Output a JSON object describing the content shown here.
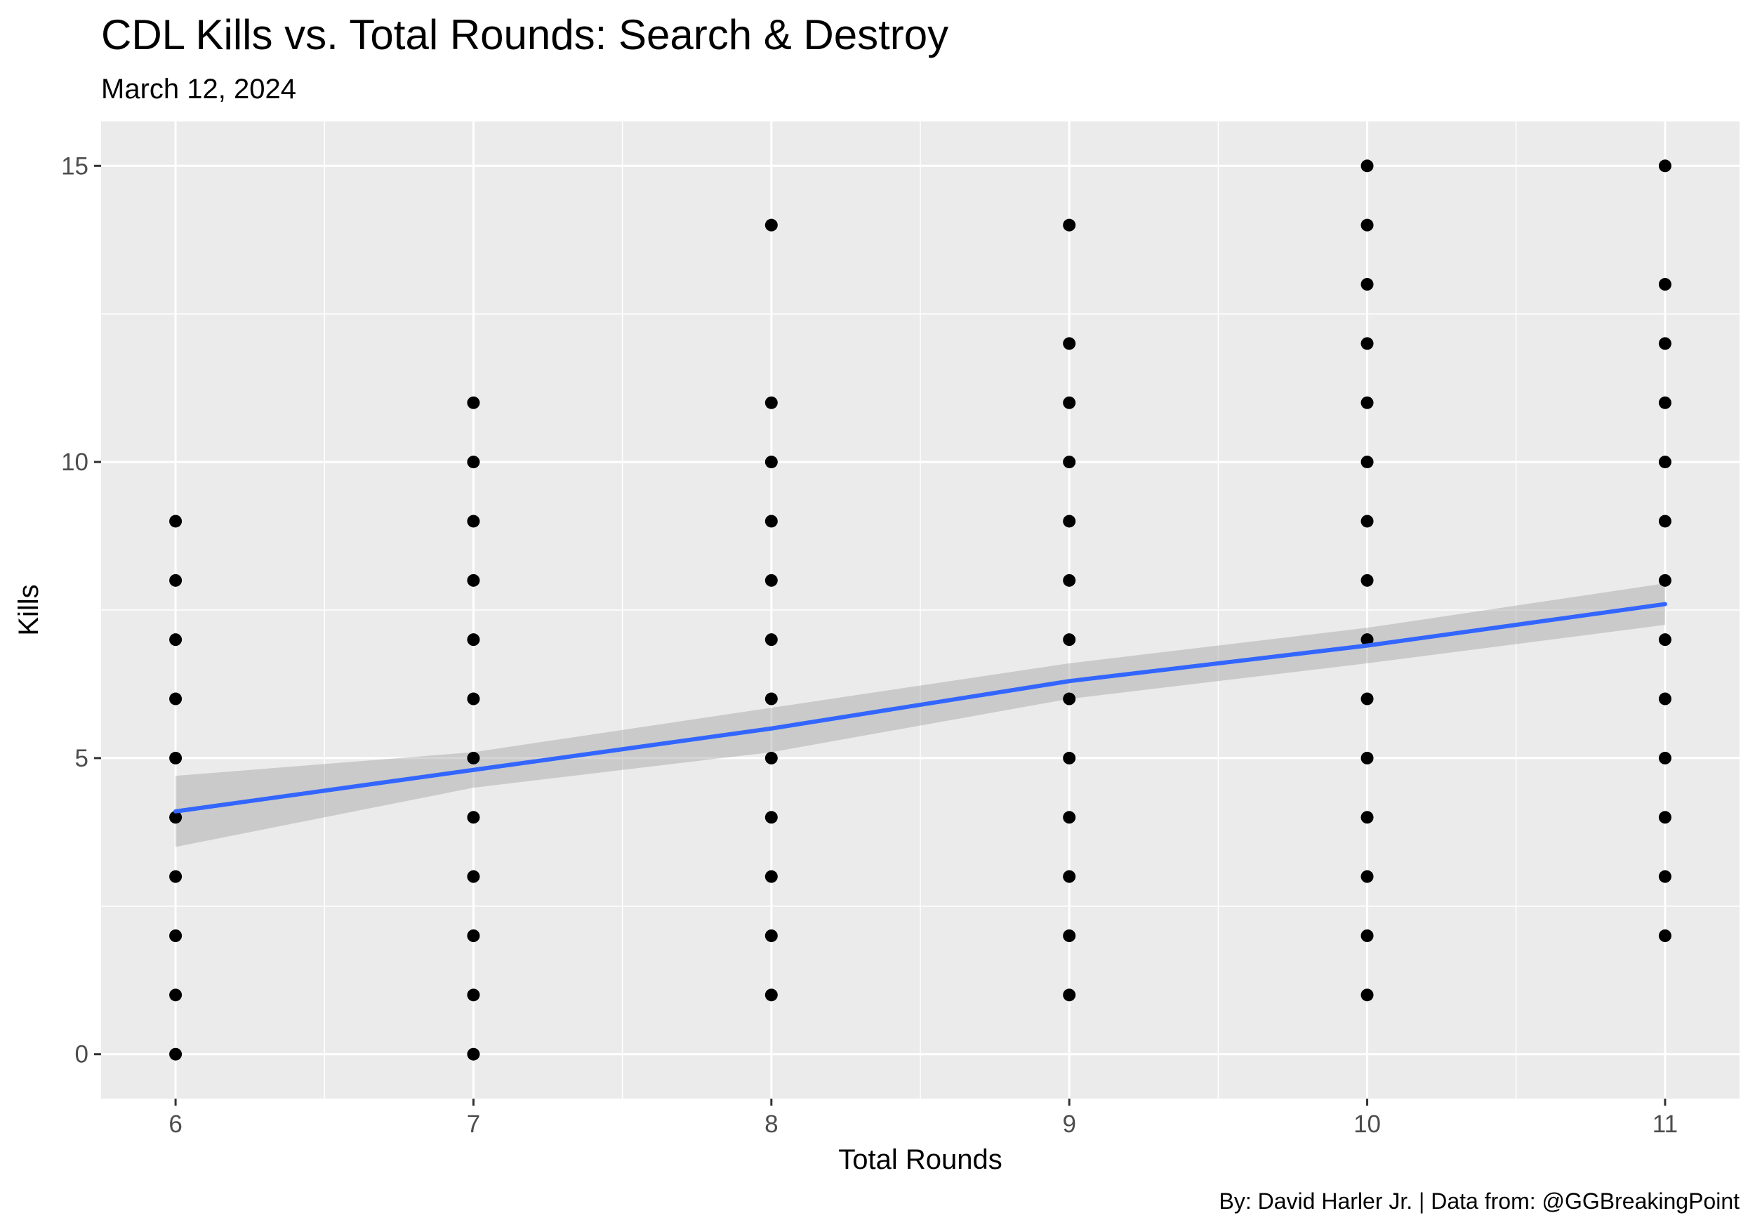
{
  "chart_data": {
    "type": "scatter",
    "title": "CDL Kills vs. Total Rounds: Search & Destroy",
    "subtitle": "March 12, 2024",
    "xlabel": "Total Rounds",
    "ylabel": "Kills",
    "caption": "By: David Harler Jr. | Data from: @GGBreakingPoint",
    "xlim": [
      5.75,
      11.25
    ],
    "ylim": [
      -0.75,
      15.75
    ],
    "x_ticks": [
      6,
      7,
      8,
      9,
      10,
      11
    ],
    "x_tick_labels": [
      "6",
      "7",
      "8",
      "9",
      "10",
      "11"
    ],
    "y_ticks": [
      0,
      5,
      10,
      15
    ],
    "y_tick_labels": [
      "0",
      "5",
      "10",
      "15"
    ],
    "grid": true,
    "colors": {
      "panel": "#ebebeb",
      "grid": "#ffffff",
      "points": "#000000",
      "trend_line": "#3366ff",
      "confidence_band": "#999999"
    },
    "points": [
      {
        "x": 6,
        "y": [
          0,
          1,
          2,
          3,
          4,
          5,
          6,
          7,
          8,
          9
        ]
      },
      {
        "x": 7,
        "y": [
          0,
          1,
          2,
          3,
          4,
          5,
          6,
          7,
          8,
          9,
          10,
          11
        ]
      },
      {
        "x": 8,
        "y": [
          1,
          2,
          3,
          4,
          5,
          6,
          7,
          8,
          9,
          10,
          11,
          14
        ]
      },
      {
        "x": 9,
        "y": [
          1,
          2,
          3,
          4,
          5,
          6,
          7,
          8,
          9,
          10,
          11,
          12,
          14
        ]
      },
      {
        "x": 10,
        "y": [
          1,
          2,
          3,
          4,
          5,
          6,
          7,
          8,
          9,
          10,
          11,
          12,
          13,
          14,
          15
        ]
      },
      {
        "x": 11,
        "y": [
          2,
          3,
          4,
          5,
          6,
          7,
          8,
          9,
          10,
          11,
          12,
          13,
          15
        ]
      }
    ],
    "trend": {
      "x": [
        6,
        7,
        8,
        9,
        10,
        11
      ],
      "y": [
        4.1,
        4.8,
        5.5,
        6.3,
        6.9,
        7.6
      ],
      "lower": [
        3.5,
        4.5,
        5.1,
        6.0,
        6.6,
        7.25
      ],
      "upper": [
        4.7,
        5.1,
        5.85,
        6.6,
        7.2,
        7.95
      ]
    }
  }
}
